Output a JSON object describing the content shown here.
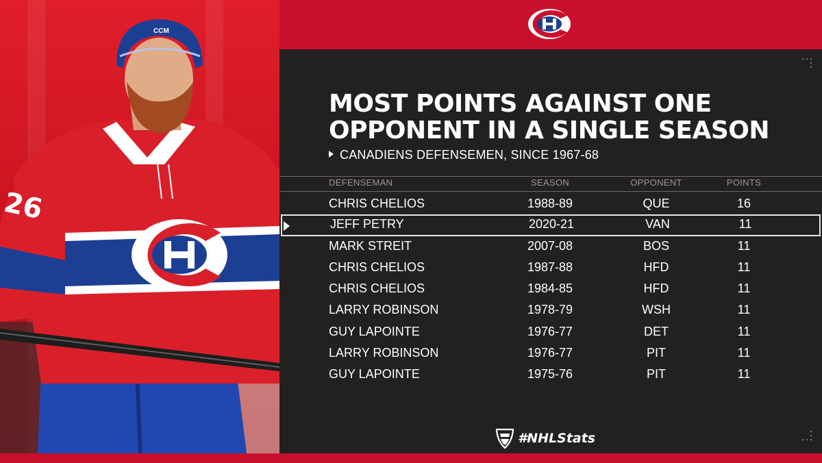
{
  "title_line1": "MOST POINTS AGAINST ONE",
  "title_line2": "OPPONENT IN A SINGLE SEASON",
  "subtitle": "CANADIENS DEFENSEMEN, SINCE 1967-68",
  "columns": {
    "defenseman": "DEFENSEMAN",
    "season": "SEASON",
    "opponent": "OPPONENT",
    "points": "POINTS"
  },
  "rows": [
    {
      "name": "CHRIS CHELIOS",
      "season": "1988-89",
      "opponent": "QUE",
      "points": "16"
    },
    {
      "name": "JEFF PETRY",
      "season": "2020-21",
      "opponent": "VAN",
      "points": "11"
    },
    {
      "name": "MARK STREIT",
      "season": "2007-08",
      "opponent": "BOS",
      "points": "11"
    },
    {
      "name": "CHRIS CHELIOS",
      "season": "1987-88",
      "opponent": "HFD",
      "points": "11"
    },
    {
      "name": "CHRIS CHELIOS",
      "season": "1984-85",
      "opponent": "HFD",
      "points": "11"
    },
    {
      "name": "LARRY ROBINSON",
      "season": "1978-79",
      "opponent": "WSH",
      "points": "11"
    },
    {
      "name": "GUY LAPOINTE",
      "season": "1976-77",
      "opponent": "DET",
      "points": "11"
    },
    {
      "name": "LARRY ROBINSON",
      "season": "1976-77",
      "opponent": "PIT",
      "points": "11"
    },
    {
      "name": "GUY LAPOINTE",
      "season": "1975-76",
      "opponent": "PIT",
      "points": "11"
    }
  ],
  "hashtag": "#NHLStats",
  "photo": {
    "jersey_number": "26",
    "helmet_brand": "CCM"
  },
  "colors": {
    "red": "#c8102e",
    "dark": "#232020",
    "blue": "#1c3f94",
    "white": "#ffffff"
  }
}
